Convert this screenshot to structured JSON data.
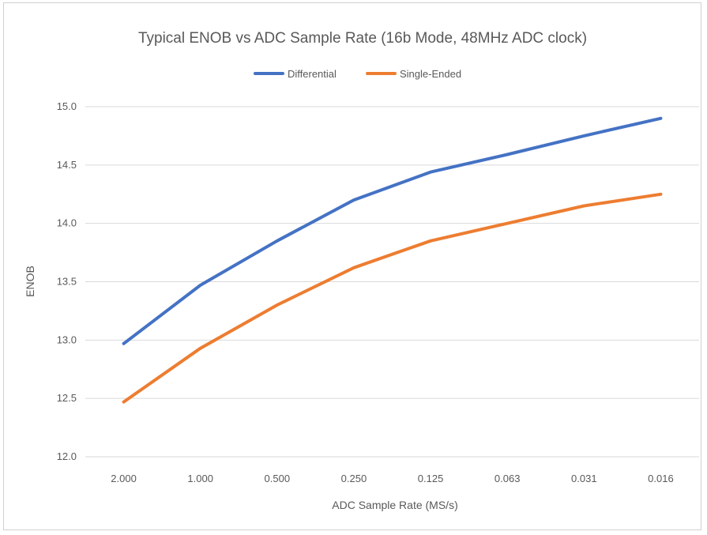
{
  "chart_data": {
    "type": "line",
    "title": "Typical ENOB vs ADC Sample Rate (16b Mode, 48MHz ADC clock)",
    "xlabel": "ADC Sample Rate (MS/s)",
    "ylabel": "ENOB",
    "categories": [
      "2.000",
      "1.000",
      "0.500",
      "0.250",
      "0.125",
      "0.063",
      "0.031",
      "0.016"
    ],
    "ylim": [
      12.0,
      15.0
    ],
    "yticks": [
      "12.0",
      "12.5",
      "13.0",
      "13.5",
      "14.0",
      "14.5",
      "15.0"
    ],
    "grid": true,
    "legend_position": "top",
    "series": [
      {
        "name": "Differential",
        "color": "#4472c4",
        "values": [
          12.97,
          13.47,
          13.85,
          14.2,
          14.44,
          14.59,
          14.75,
          14.9
        ]
      },
      {
        "name": "Single-Ended",
        "color": "#ed7d31",
        "values": [
          12.47,
          12.93,
          13.3,
          13.62,
          13.85,
          14.0,
          14.15,
          14.25
        ]
      }
    ]
  }
}
